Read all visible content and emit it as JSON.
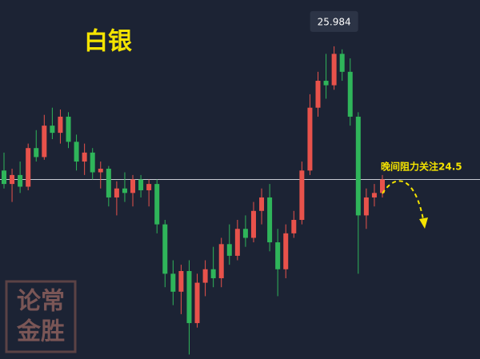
{
  "chart_data": {
    "type": "candlestick",
    "title": "白银",
    "open": [
      24.6,
      24.45,
      24.55,
      24.42,
      24.85,
      24.75,
      25.1,
      25.02,
      25.2,
      24.92,
      24.7,
      24.8,
      24.58,
      24.62,
      24.3,
      24.4,
      24.35,
      24.5,
      24.38,
      24.45,
      24.0,
      23.45,
      23.25,
      23.48,
      22.9,
      23.35,
      23.5,
      23.4,
      23.78,
      23.65,
      23.95,
      23.85,
      24.15,
      24.3,
      23.8,
      23.5,
      23.9,
      24.05,
      24.6,
      25.3,
      25.6,
      25.55,
      25.9,
      25.7,
      25.2,
      24.1,
      24.3,
      24.35
    ],
    "high": [
      24.8,
      24.62,
      24.7,
      24.9,
      25.05,
      25.22,
      25.3,
      25.28,
      25.25,
      25.0,
      24.9,
      24.85,
      24.7,
      24.65,
      24.48,
      24.58,
      24.55,
      24.55,
      24.5,
      24.5,
      24.05,
      23.6,
      23.55,
      23.6,
      23.45,
      23.6,
      23.75,
      23.85,
      24.0,
      24.05,
      24.1,
      24.25,
      24.4,
      24.45,
      23.95,
      24.0,
      24.15,
      24.7,
      25.45,
      25.7,
      25.9,
      25.984,
      25.95,
      25.85,
      25.25,
      24.4,
      24.45,
      24.55
    ],
    "low": [
      24.4,
      24.25,
      24.35,
      24.38,
      24.7,
      24.72,
      24.95,
      24.9,
      24.85,
      24.6,
      24.55,
      24.5,
      24.4,
      24.2,
      24.1,
      24.25,
      24.2,
      24.3,
      24.2,
      23.9,
      23.3,
      23.1,
      23.0,
      22.55,
      22.85,
      23.2,
      23.3,
      23.3,
      23.55,
      23.6,
      23.75,
      23.8,
      24.0,
      23.7,
      23.2,
      23.4,
      23.85,
      24.0,
      24.55,
      25.2,
      25.4,
      25.5,
      25.6,
      25.1,
      23.45,
      23.95,
      24.2,
      24.3
    ],
    "close": [
      24.45,
      24.55,
      24.42,
      24.85,
      24.75,
      25.1,
      25.02,
      25.2,
      24.92,
      24.7,
      24.8,
      24.58,
      24.62,
      24.3,
      24.4,
      24.35,
      24.5,
      24.38,
      24.45,
      24.0,
      23.45,
      23.25,
      23.48,
      22.9,
      23.35,
      23.5,
      23.4,
      23.78,
      23.65,
      23.95,
      23.85,
      24.15,
      24.3,
      23.8,
      23.5,
      23.9,
      24.05,
      24.6,
      25.3,
      25.6,
      25.55,
      25.9,
      25.7,
      25.2,
      24.1,
      24.3,
      24.35,
      24.5
    ],
    "ylim": [
      22.5,
      26.5
    ],
    "up_color": "#e8524b",
    "down_color": "#2fb55a",
    "hline": 24.5,
    "hline_color": "#c9ccd4",
    "annotation": "晚间阻力关注24.5",
    "watermark_lines": [
      "论常",
      "金胜"
    ]
  }
}
